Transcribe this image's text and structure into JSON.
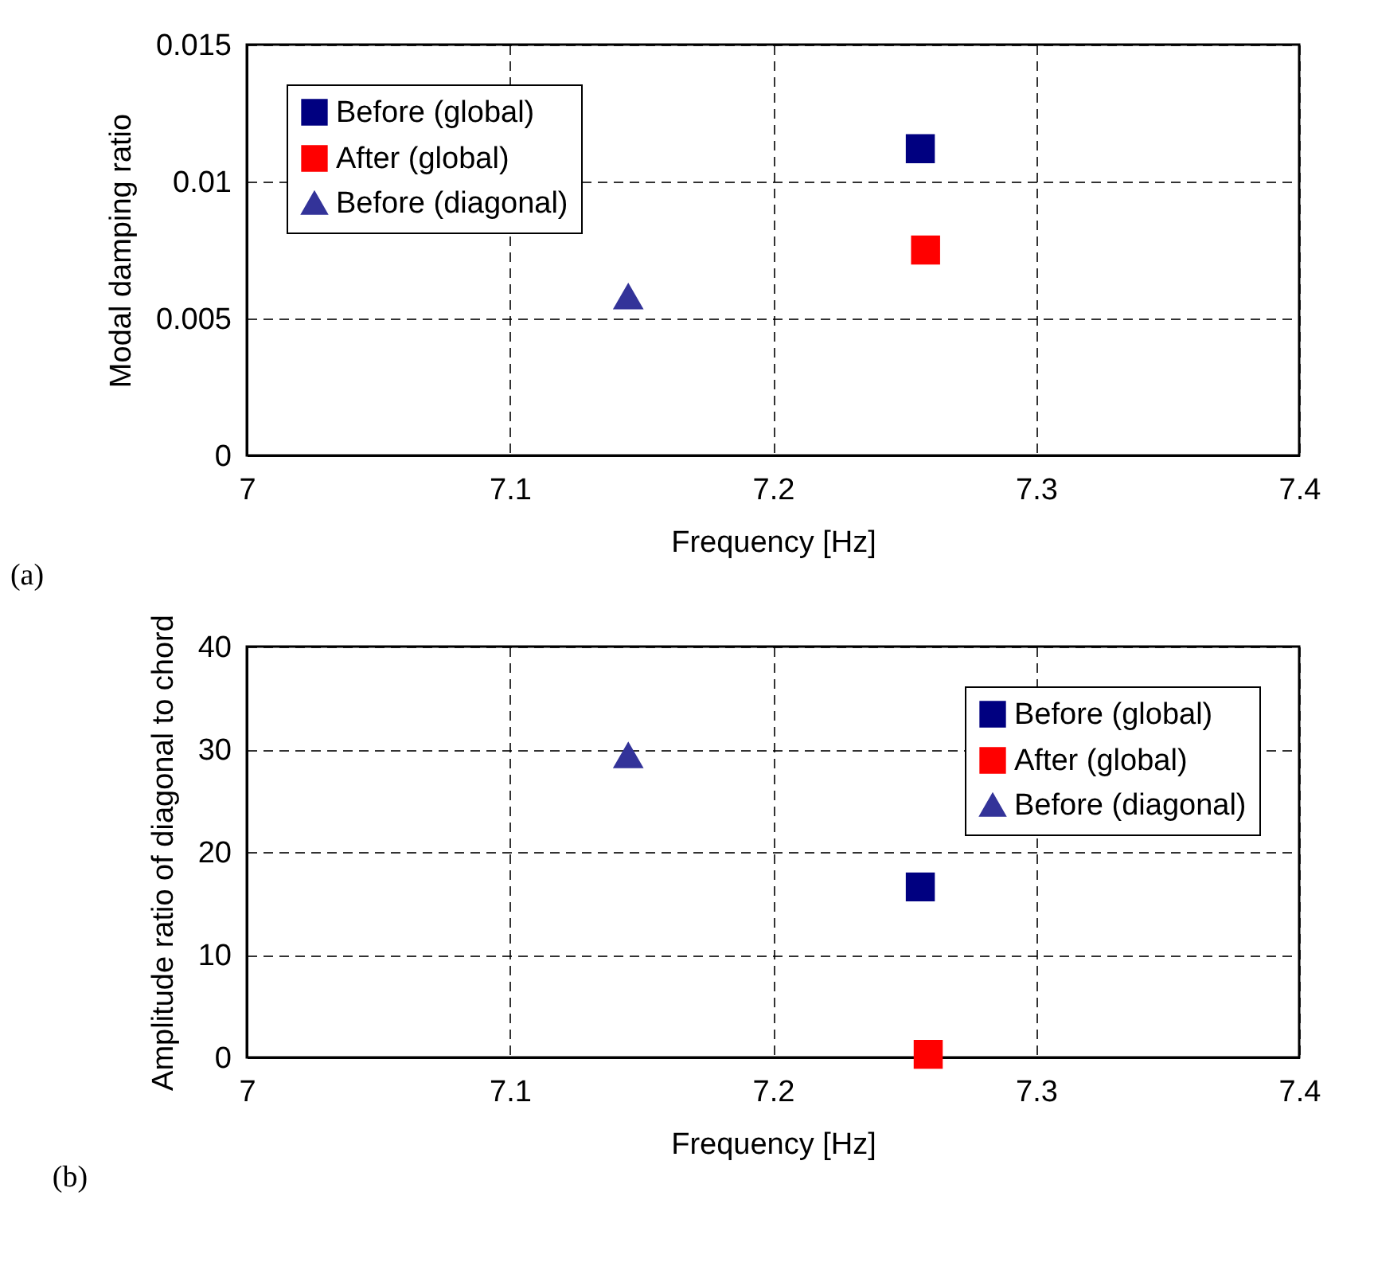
{
  "chart_data": [
    {
      "type": "scatter",
      "xlabel": "Frequency [Hz]",
      "ylabel": "Modal damping ratio",
      "annotations": [
        "(a)"
      ],
      "xlim": [
        7,
        7.4
      ],
      "xticks": [
        7,
        7.1,
        7.2,
        7.3,
        7.4
      ],
      "ylim": [
        0,
        0.015
      ],
      "yticks": [
        0,
        0.005,
        0.01,
        0.015
      ],
      "grid": true,
      "legend": "top left",
      "series": [
        {
          "name": "Before (global)",
          "color": "#000080",
          "marker": "square",
          "x": [
            7.256
          ],
          "values": [
            0.0112
          ]
        },
        {
          "name": "After (global)",
          "color": "#ff0000",
          "marker": "square",
          "x": [
            7.258
          ],
          "values": [
            0.0075
          ]
        },
        {
          "name": "Before (diagonal)",
          "color": "#333399",
          "marker": "triangle",
          "x": [
            7.145
          ],
          "values": [
            0.0058
          ]
        }
      ]
    },
    {
      "type": "scatter",
      "xlabel": "Frequency [Hz]",
      "ylabel": "Amplitude ratio of diagonal to chord",
      "annotations": [
        "(b)"
      ],
      "xlim": [
        7,
        7.4
      ],
      "xticks": [
        7,
        7.1,
        7.2,
        7.3,
        7.4
      ],
      "ylim": [
        0,
        40
      ],
      "yticks": [
        0,
        10,
        20,
        30,
        40
      ],
      "grid": true,
      "legend": "top right",
      "series": [
        {
          "name": "Before (global)",
          "color": "#000080",
          "marker": "square",
          "x": [
            7.256
          ],
          "values": [
            16.6
          ]
        },
        {
          "name": "After (global)",
          "color": "#ff0000",
          "marker": "square",
          "x": [
            7.259
          ],
          "values": [
            0.3
          ]
        },
        {
          "name": "Before (diagonal)",
          "color": "#333399",
          "marker": "triangle",
          "x": [
            7.145
          ],
          "values": [
            29.4
          ]
        }
      ]
    }
  ]
}
